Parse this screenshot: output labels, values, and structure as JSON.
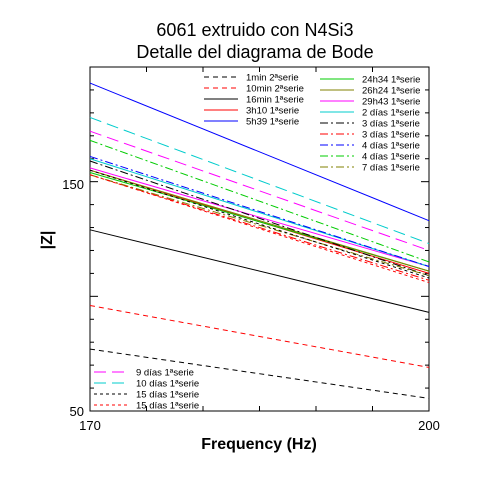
{
  "chart_data": {
    "type": "line",
    "title": [
      "6061 extruido con N4Si3",
      "Detalle del diagrama de Bode"
    ],
    "xlabel": "Frequency (Hz)",
    "ylabel": "|Z|",
    "xlim": [
      170,
      200
    ],
    "ylim": [
      50,
      200
    ],
    "xticks": [
      170,
      200
    ],
    "yticks": [
      50,
      150
    ],
    "grid": false,
    "legend": "top-right and bottom-left",
    "x": [
      170,
      200
    ],
    "series": [
      {
        "name": "1min 2ªserie",
        "color": "#000000",
        "dash": "dash",
        "values": [
          77,
          55.5
        ],
        "legend_group": 0,
        "legend_col": 0
      },
      {
        "name": "10min 2ªserie",
        "color": "#ff0000",
        "dash": "dash",
        "values": [
          96,
          69
        ],
        "legend_group": 0,
        "legend_col": 0
      },
      {
        "name": "16min 1ªserie",
        "color": "#000000",
        "dash": "solid",
        "values": [
          129,
          93
        ],
        "legend_group": 0,
        "legend_col": 0
      },
      {
        "name": "3h10 1ªserie",
        "color": "#ff0000",
        "dash": "solid",
        "values": [
          155,
          110
        ],
        "legend_group": 0,
        "legend_col": 0
      },
      {
        "name": "5h39 1ªserie",
        "color": "#0000ff",
        "dash": "solid",
        "values": [
          193,
          133
        ],
        "legend_group": 0,
        "legend_col": 0
      },
      {
        "name": "24h34 1ªserie",
        "color": "#00cc00",
        "dash": "solid",
        "values": [
          154,
          111
        ],
        "legend_group": 0,
        "legend_col": 1
      },
      {
        "name": "26h24 1ªserie",
        "color": "#808000",
        "dash": "solid",
        "values": [
          155,
          111
        ],
        "legend_group": 0,
        "legend_col": 1
      },
      {
        "name": "29h43 1ªserie",
        "color": "#ff00ff",
        "dash": "solid",
        "values": [
          156,
          113
        ],
        "legend_group": 0,
        "legend_col": 1
      },
      {
        "name": "2 días 1ªserie",
        "color": "#00cccc",
        "dash": "solid",
        "values": [
          160,
          113
        ],
        "legend_group": 0,
        "legend_col": 1
      },
      {
        "name": "3 días 1ªserie",
        "color": "#000000",
        "dash": "dashdot",
        "values": [
          159,
          109
        ],
        "legend_group": 0,
        "legend_col": 1
      },
      {
        "name": "3 días 1ªserie",
        "color": "#ff0000",
        "dash": "dashdot",
        "values": [
          153,
          107
        ],
        "legend_group": 0,
        "legend_col": 1
      },
      {
        "name": "4 días 1ªserie",
        "color": "#0000ff",
        "dash": "dashdot",
        "values": [
          161,
          113
        ],
        "legend_group": 0,
        "legend_col": 1
      },
      {
        "name": "4 días 1ªserie",
        "color": "#00cc00",
        "dash": "dashdot",
        "values": [
          168,
          115
        ],
        "legend_group": 0,
        "legend_col": 1
      },
      {
        "name": "7 días 1ªserie",
        "color": "#808000",
        "dash": "dashdot",
        "values": [
          153,
          109
        ],
        "legend_group": 0,
        "legend_col": 1
      },
      {
        "name": "9 días 1ªserie",
        "color": "#ff00ff",
        "dash": "longdash",
        "values": [
          172,
          120
        ],
        "legend_group": 1,
        "legend_col": 0
      },
      {
        "name": "10 días 1ªserie",
        "color": "#00cccc",
        "dash": "longdash",
        "values": [
          178,
          123
        ],
        "legend_group": 1,
        "legend_col": 0
      },
      {
        "name": "15 días 1ªserie",
        "color": "#000000",
        "dash": "dot",
        "values": [
          155,
          108
        ],
        "legend_group": 1,
        "legend_col": 0
      },
      {
        "name": "15 días 1ªserie",
        "color": "#ff0000",
        "dash": "dot",
        "values": [
          153,
          106
        ],
        "legend_group": 1,
        "legend_col": 0
      }
    ]
  }
}
